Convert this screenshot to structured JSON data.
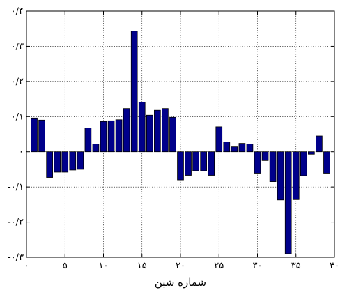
{
  "chart_data": {
    "type": "bar",
    "title": "",
    "xlabel": "شماره شین",
    "ylabel": "",
    "xlim": [
      0,
      40
    ],
    "ylim": [
      -0.3,
      0.4
    ],
    "grid": true,
    "bar_color": "#00008b",
    "x_ticks": [
      {
        "value": 0,
        "label": "۰"
      },
      {
        "value": 5,
        "label": "۵"
      },
      {
        "value": 10,
        "label": "۱۰"
      },
      {
        "value": 15,
        "label": "۱۵"
      },
      {
        "value": 20,
        "label": "۲۰"
      },
      {
        "value": 25,
        "label": "۲۵"
      },
      {
        "value": 30,
        "label": "۳۰"
      },
      {
        "value": 35,
        "label": "۳۵"
      },
      {
        "value": 40,
        "label": "۴۰"
      }
    ],
    "y_ticks": [
      {
        "value": -0.3,
        "label": "-۰/۳"
      },
      {
        "value": -0.2,
        "label": "-۰/۲"
      },
      {
        "value": -0.1,
        "label": "-۰/۱"
      },
      {
        "value": 0,
        "label": "۰"
      },
      {
        "value": 0.1,
        "label": "۰/۱"
      },
      {
        "value": 0.2,
        "label": "۰/۲"
      },
      {
        "value": 0.3,
        "label": "۰/۳"
      },
      {
        "value": 0.4,
        "label": "۰/۴"
      }
    ],
    "x": [
      1,
      2,
      3,
      4,
      5,
      6,
      7,
      8,
      9,
      10,
      11,
      12,
      13,
      14,
      15,
      16,
      17,
      18,
      19,
      20,
      21,
      22,
      23,
      24,
      25,
      26,
      27,
      28,
      29,
      30,
      31,
      32,
      33,
      34,
      35,
      36,
      37,
      38,
      39
    ],
    "values": [
      0.096,
      0.09,
      -0.073,
      -0.058,
      -0.058,
      -0.052,
      -0.05,
      0.068,
      0.022,
      0.086,
      0.088,
      0.091,
      0.123,
      0.343,
      0.141,
      0.104,
      0.118,
      0.123,
      0.098,
      -0.08,
      -0.067,
      -0.054,
      -0.054,
      -0.067,
      0.071,
      0.028,
      0.014,
      0.024,
      0.022,
      -0.061,
      -0.025,
      -0.085,
      -0.137,
      -0.29,
      -0.136,
      -0.068,
      -0.007,
      0.045,
      -0.061
    ]
  }
}
